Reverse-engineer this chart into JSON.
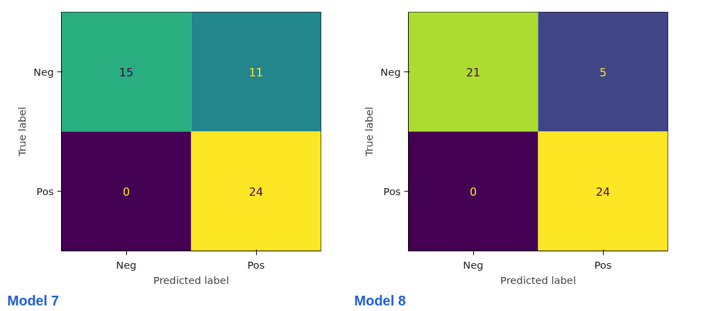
{
  "chart_data": [
    {
      "type": "heatmap",
      "categories": [
        "Neg",
        "Pos"
      ],
      "y_categories": [
        "Neg",
        "Pos"
      ],
      "cells": [
        [
          15,
          11
        ],
        [
          0,
          24
        ]
      ],
      "data_labels": true,
      "xlabel": "Predicted label",
      "ylabel": "True label",
      "annotations": [
        "Model 7"
      ]
    },
    {
      "type": "heatmap",
      "categories": [
        "Neg",
        "Pos"
      ],
      "y_categories": [
        "Neg",
        "Pos"
      ],
      "cells": [
        [
          21,
          5
        ],
        [
          0,
          24
        ]
      ],
      "data_labels": true,
      "xlabel": "Predicted label",
      "ylabel": "True label",
      "annotations": [
        "Model 8"
      ]
    }
  ]
}
